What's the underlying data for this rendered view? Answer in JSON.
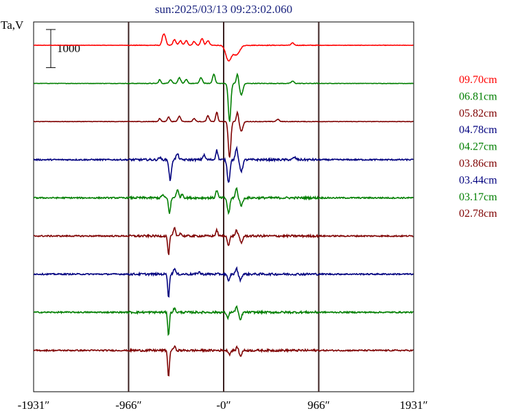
{
  "chart_data": {
    "type": "line",
    "title": "sun:2025/03/13 09:23:02.060",
    "title_color": "#1a237e",
    "ylabel": "Ta,V",
    "scale_bar_label": "1000",
    "scale_bar_value": 1000,
    "xlim": [
      -1931,
      1931
    ],
    "x_ticks": [
      {
        "value": -1931,
        "label": "-1931″"
      },
      {
        "value": -966,
        "label": "-966″"
      },
      {
        "value": 0,
        "label": "-0″"
      },
      {
        "value": 966,
        "label": "966″"
      },
      {
        "value": 1931,
        "label": "1931″"
      }
    ],
    "vertical_markers": [
      -966,
      0,
      966
    ],
    "grid": false,
    "legend_position": "right",
    "series": [
      {
        "name": "09.70cm",
        "color": "#ff0000",
        "baseline": 0,
        "features": [
          {
            "x": -600,
            "amp": 250,
            "w": 20
          },
          {
            "x": -620,
            "amp": 150,
            "w": 15
          },
          {
            "x": -500,
            "amp": 150,
            "w": 20
          },
          {
            "x": -440,
            "amp": 120,
            "w": 20
          },
          {
            "x": -380,
            "amp": 120,
            "w": 20
          },
          {
            "x": -300,
            "amp": 100,
            "w": 20
          },
          {
            "x": -220,
            "amp": 180,
            "w": 20
          },
          {
            "x": -160,
            "amp": 120,
            "w": 20
          },
          {
            "x": 50,
            "amp": -400,
            "w": 40
          },
          {
            "x": 130,
            "amp": -250,
            "w": 45
          },
          {
            "x": 700,
            "amp": 60,
            "w": 20
          }
        ]
      },
      {
        "name": "06.81cm",
        "color": "#007f00",
        "baseline": -1000,
        "features": [
          {
            "x": -650,
            "amp": 100,
            "w": 15
          },
          {
            "x": -540,
            "amp": 100,
            "w": 20
          },
          {
            "x": -450,
            "amp": 150,
            "w": 20
          },
          {
            "x": -380,
            "amp": 100,
            "w": 18
          },
          {
            "x": -230,
            "amp": 150,
            "w": 20
          },
          {
            "x": -100,
            "amp": 250,
            "w": 18
          },
          {
            "x": 60,
            "amp": -1000,
            "w": 18
          },
          {
            "x": 140,
            "amp": 250,
            "w": 15
          },
          {
            "x": 180,
            "amp": -300,
            "w": 22
          },
          {
            "x": 700,
            "amp": 60,
            "w": 20
          }
        ]
      },
      {
        "name": "05.82cm",
        "color": "#7f0000",
        "baseline": -2000,
        "features": [
          {
            "x": -650,
            "amp": 80,
            "w": 15
          },
          {
            "x": -560,
            "amp": 120,
            "w": 18
          },
          {
            "x": -450,
            "amp": 140,
            "w": 20
          },
          {
            "x": -300,
            "amp": 80,
            "w": 18
          },
          {
            "x": -160,
            "amp": 150,
            "w": 18
          },
          {
            "x": -70,
            "amp": 250,
            "w": 15
          },
          {
            "x": 60,
            "amp": -950,
            "w": 18
          },
          {
            "x": 140,
            "amp": 250,
            "w": 15
          },
          {
            "x": 180,
            "amp": -250,
            "w": 22
          },
          {
            "x": 550,
            "amp": 60,
            "w": 20
          }
        ]
      },
      {
        "name": "04.78cm",
        "color": "#00007f",
        "baseline": -3000,
        "features": [
          {
            "x": -650,
            "amp": 60,
            "w": 15
          },
          {
            "x": -550,
            "amp": -200,
            "w": 15
          },
          {
            "x": -540,
            "amp": -400,
            "w": 15
          },
          {
            "x": -470,
            "amp": 150,
            "w": 18
          },
          {
            "x": -200,
            "amp": 120,
            "w": 18
          },
          {
            "x": -70,
            "amp": 250,
            "w": 15
          },
          {
            "x": 50,
            "amp": -600,
            "w": 18
          },
          {
            "x": 130,
            "amp": 300,
            "w": 15
          },
          {
            "x": 180,
            "amp": -300,
            "w": 20
          },
          {
            "x": 720,
            "amp": 60,
            "w": 20
          }
        ]
      },
      {
        "name": "04.27cm",
        "color": "#007f00",
        "baseline": -4000,
        "features": [
          {
            "x": -620,
            "amp": 80,
            "w": 15
          },
          {
            "x": -550,
            "amp": -400,
            "w": 15
          },
          {
            "x": -470,
            "amp": 200,
            "w": 18
          },
          {
            "x": -420,
            "amp": 100,
            "w": 15
          },
          {
            "x": -70,
            "amp": 200,
            "w": 15
          },
          {
            "x": 50,
            "amp": -400,
            "w": 18
          },
          {
            "x": 130,
            "amp": 250,
            "w": 15
          },
          {
            "x": 180,
            "amp": -200,
            "w": 20
          }
        ]
      },
      {
        "name": "03.86cm",
        "color": "#7f0000",
        "baseline": -5000,
        "features": [
          {
            "x": -560,
            "amp": -500,
            "w": 12
          },
          {
            "x": -500,
            "amp": 200,
            "w": 15
          },
          {
            "x": -440,
            "amp": 80,
            "w": 15
          },
          {
            "x": -70,
            "amp": 150,
            "w": 15
          },
          {
            "x": 50,
            "amp": -250,
            "w": 15
          },
          {
            "x": 130,
            "amp": 150,
            "w": 15
          },
          {
            "x": 180,
            "amp": -180,
            "w": 18
          }
        ]
      },
      {
        "name": "03.44cm",
        "color": "#00007f",
        "baseline": -6000,
        "features": [
          {
            "x": -560,
            "amp": -600,
            "w": 12
          },
          {
            "x": -500,
            "amp": 150,
            "w": 15
          },
          {
            "x": -250,
            "amp": 60,
            "w": 15
          },
          {
            "x": 50,
            "amp": -200,
            "w": 15
          },
          {
            "x": 130,
            "amp": 150,
            "w": 15
          },
          {
            "x": 170,
            "amp": -150,
            "w": 18
          }
        ]
      },
      {
        "name": "03.17cm",
        "color": "#007f00",
        "baseline": -7000,
        "features": [
          {
            "x": -560,
            "amp": -600,
            "w": 12
          },
          {
            "x": -500,
            "amp": 100,
            "w": 15
          },
          {
            "x": 40,
            "amp": -150,
            "w": 15
          },
          {
            "x": 130,
            "amp": 150,
            "w": 15
          },
          {
            "x": 170,
            "amp": -200,
            "w": 18
          }
        ]
      },
      {
        "name": "02.78cm",
        "color": "#7f0000",
        "baseline": -8000,
        "features": [
          {
            "x": -560,
            "amp": -700,
            "w": 12
          },
          {
            "x": -500,
            "amp": 100,
            "w": 15
          },
          {
            "x": 60,
            "amp": -100,
            "w": 15
          },
          {
            "x": 140,
            "amp": 100,
            "w": 15
          },
          {
            "x": 170,
            "amp": -150,
            "w": 18
          }
        ]
      }
    ],
    "ylim": [
      -9000,
      600
    ]
  }
}
